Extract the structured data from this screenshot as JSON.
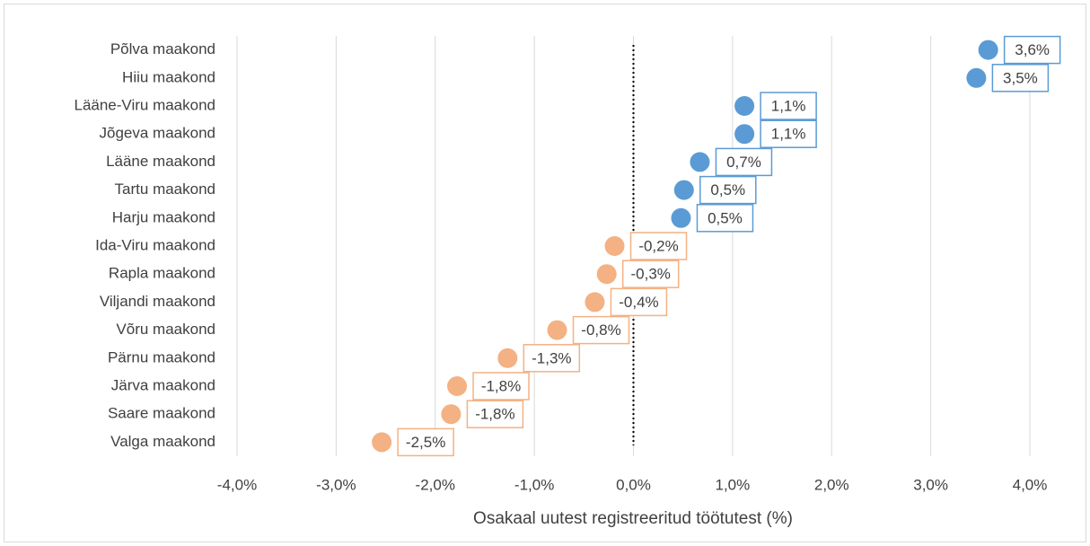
{
  "chart_data": {
    "type": "dot",
    "x_label": "Osakaal uutest registreeritud töötutest (%)",
    "categories": [
      "Põlva maakond",
      "Hiiu maakond",
      "Lääne-Viru maakond",
      "Jõgeva maakond",
      "Lääne maakond",
      "Tartu maakond",
      "Harju maakond",
      "Ida-Viru maakond",
      "Rapla maakond",
      "Viljandi maakond",
      "Võru maakond",
      "Pärnu maakond",
      "Järva maakond",
      "Saare maakond",
      "Valga maakond"
    ],
    "values": [
      3.58,
      3.46,
      1.12,
      1.12,
      0.67,
      0.51,
      0.48,
      -0.19,
      -0.27,
      -0.39,
      -0.77,
      -1.27,
      -1.78,
      -1.84,
      -2.54
    ],
    "value_labels": [
      "3,6%",
      "3,5%",
      "1,1%",
      "1,1%",
      "0,7%",
      "0,5%",
      "0,5%",
      "-0,2%",
      "-0,3%",
      "-0,4%",
      "-0,8%",
      "-1,3%",
      "-1,8%",
      "-1,8%",
      "-2,5%"
    ],
    "colors": [
      "#5b9bd5",
      "#5b9bd5",
      "#5b9bd5",
      "#5b9bd5",
      "#5b9bd5",
      "#5b9bd5",
      "#5b9bd5",
      "#f4b183",
      "#f4b183",
      "#f4b183",
      "#f4b183",
      "#f4b183",
      "#f4b183",
      "#f4b183",
      "#f4b183"
    ],
    "xlim": [
      -4,
      4
    ],
    "xticks": [
      {
        "value": -4,
        "label": "-4,0%"
      },
      {
        "value": -3,
        "label": "-3,0%"
      },
      {
        "value": -2,
        "label": "-2,0%"
      },
      {
        "value": -1,
        "label": "-1,0%"
      },
      {
        "value": 0,
        "label": "0,0%"
      },
      {
        "value": 1,
        "label": "1,0%"
      },
      {
        "value": 2,
        "label": "2,0%"
      },
      {
        "value": 3,
        "label": "3,0%"
      },
      {
        "value": 4,
        "label": "4,0%"
      }
    ],
    "grid": true
  }
}
